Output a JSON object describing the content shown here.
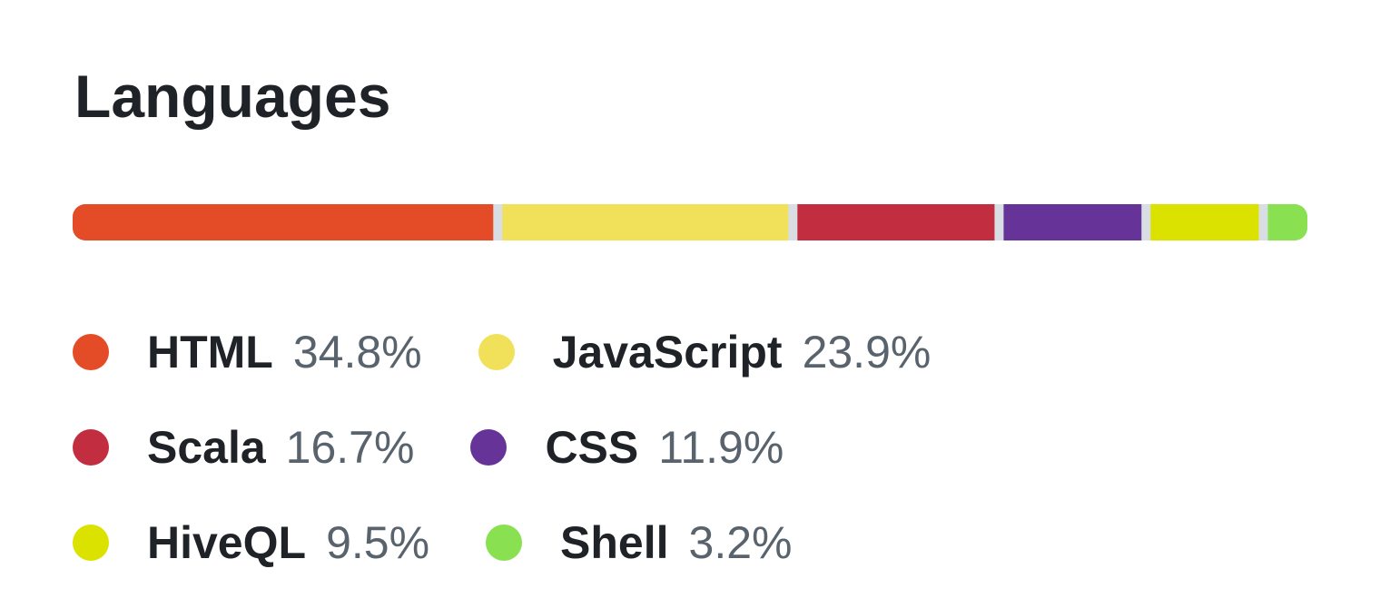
{
  "chart_data": {
    "type": "stacked-bar",
    "title": "Languages",
    "series": [
      {
        "name": "HTML",
        "color": "#e34c26",
        "values": [
          34.8
        ],
        "value_labels": [
          "34.8%"
        ]
      },
      {
        "name": "JavaScript",
        "color": "#f1e05a",
        "values": [
          23.9
        ],
        "value_labels": [
          "23.9%"
        ]
      },
      {
        "name": "Scala",
        "color": "#c22d40",
        "values": [
          16.7
        ],
        "value_labels": [
          "16.7%"
        ]
      },
      {
        "name": "CSS",
        "color": "#663399",
        "values": [
          11.9
        ],
        "value_labels": [
          "11.9%"
        ]
      },
      {
        "name": "HiveQL",
        "color": "#dce200",
        "values": [
          9.5
        ],
        "value_labels": [
          "9.5%"
        ]
      },
      {
        "name": "Shell",
        "color": "#89e051",
        "values": [
          3.2
        ],
        "value_labels": [
          "3.2%"
        ]
      }
    ]
  }
}
